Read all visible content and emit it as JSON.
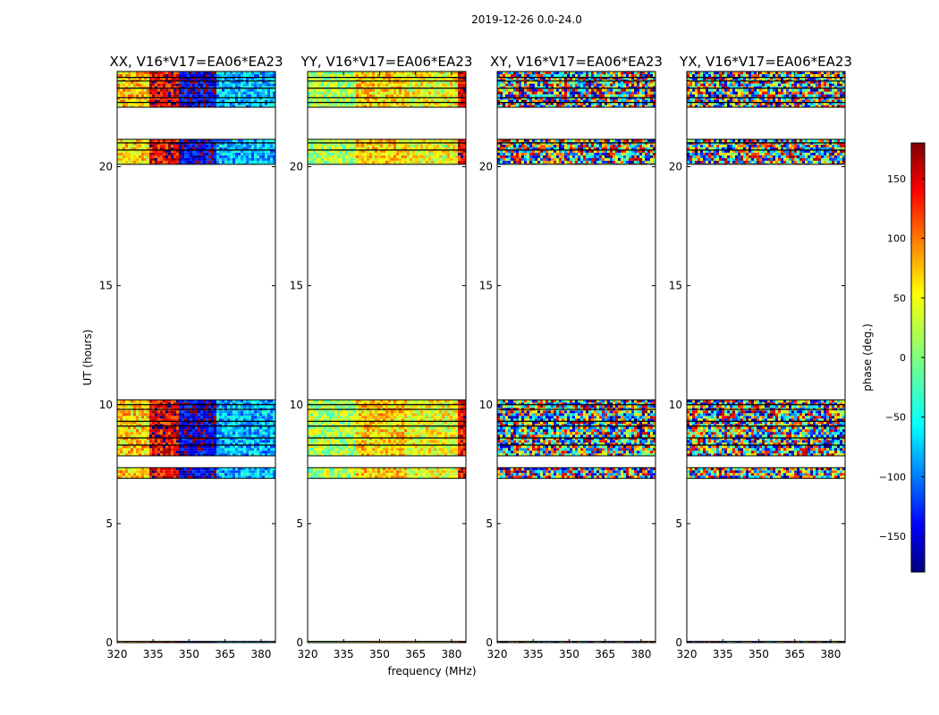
{
  "figure": {
    "suptitle": "2019-12-26 0.0-24.0",
    "xlabel": "frequency (MHz)",
    "ylabel": "UT (hours)"
  },
  "chart_data": [
    {
      "type": "heatmap",
      "title": "XX, V16*V17=EA06*EA23",
      "xlim": [
        320,
        386
      ],
      "ylim": [
        0,
        24
      ],
      "xticks": [
        320,
        335,
        350,
        365,
        380
      ],
      "yticks": [
        0,
        5,
        10,
        15,
        20
      ],
      "phase_bands": [
        {
          "f0": 320,
          "f1": 333,
          "phase": 60
        },
        {
          "f0": 333,
          "f1": 345,
          "phase": 140
        },
        {
          "f0": 345,
          "f1": 361,
          "phase": -150
        },
        {
          "f0": 361,
          "f1": 386,
          "phase": -70
        }
      ],
      "noise": 50
    },
    {
      "type": "heatmap",
      "title": "YY, V16*V17=EA06*EA23",
      "xlim": [
        320,
        386
      ],
      "ylim": [
        0,
        24
      ],
      "xticks": [
        320,
        335,
        350,
        365,
        380
      ],
      "yticks": [
        0,
        5,
        10,
        15,
        20
      ],
      "phase_bands": [
        {
          "f0": 320,
          "f1": 340,
          "phase": 15
        },
        {
          "f0": 340,
          "f1": 361,
          "phase": 60
        },
        {
          "f0": 361,
          "f1": 382,
          "phase": 40
        },
        {
          "f0": 382,
          "f1": 386,
          "phase": 140
        }
      ],
      "noise": 45
    },
    {
      "type": "heatmap",
      "title": "XY, V16*V17=EA06*EA23",
      "xlim": [
        320,
        386
      ],
      "ylim": [
        0,
        24
      ],
      "xticks": [
        320,
        335,
        350,
        365,
        380
      ],
      "yticks": [
        0,
        5,
        10,
        15,
        20
      ],
      "phase_bands": [
        {
          "f0": 320,
          "f1": 386,
          "phase": 0
        }
      ],
      "noise": 180
    },
    {
      "type": "heatmap",
      "title": "YX, V16*V17=EA06*EA23",
      "xlim": [
        320,
        386
      ],
      "ylim": [
        0,
        24
      ],
      "xticks": [
        320,
        335,
        350,
        365,
        380
      ],
      "yticks": [
        0,
        5,
        10,
        15,
        20
      ],
      "phase_bands": [
        {
          "f0": 320,
          "f1": 386,
          "phase": 0
        }
      ],
      "noise": 180
    }
  ],
  "data_time_blocks_ut_hours": [
    [
      0.0,
      0.05
    ],
    [
      6.9,
      7.35
    ],
    [
      7.85,
      10.2
    ],
    [
      20.1,
      21.15
    ],
    [
      22.5,
      23.6
    ],
    [
      23.6,
      24.0
    ]
  ],
  "gap_lines_ut_hours": [
    8.3,
    8.6,
    9.1,
    9.3,
    9.8,
    10.0,
    20.7,
    21.0,
    22.7,
    22.9,
    23.3,
    23.75
  ],
  "colorbar": {
    "label": "phase (deg.)",
    "range": [
      -180,
      180
    ],
    "ticks": [
      "150",
      "100",
      "50",
      "0",
      "−50",
      "−100",
      "−150"
    ],
    "tick_values": [
      150,
      100,
      50,
      0,
      -50,
      -100,
      -150
    ],
    "colormap": "jet"
  }
}
